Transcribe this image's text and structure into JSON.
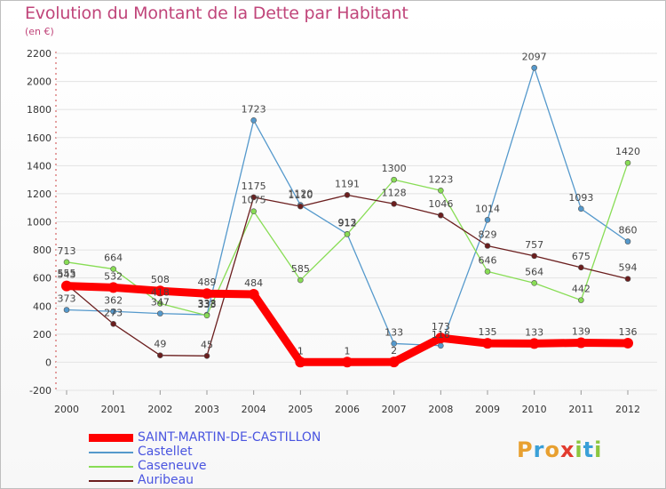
{
  "chart": {
    "title": "Evolution du Montant de la Dette par Habitant",
    "subtitle": "(en €)"
  },
  "logo": {
    "text": "Proxiti",
    "letters": [
      {
        "ch": "P",
        "color": "#e8a030"
      },
      {
        "ch": "r",
        "color": "#3aa0d8"
      },
      {
        "ch": "o",
        "color": "#e8a030"
      },
      {
        "ch": "x",
        "color": "#e23b2f"
      },
      {
        "ch": "i",
        "color": "#8cc63f"
      },
      {
        "ch": "t",
        "color": "#3aa0d8"
      },
      {
        "ch": "i",
        "color": "#8cc63f"
      }
    ]
  },
  "chart_data": {
    "type": "line",
    "title": "Evolution du Montant de la Dette par Habitant",
    "subtitle": "(en €)",
    "x": [
      "2000",
      "2001",
      "2002",
      "2003",
      "2004",
      "2005",
      "2006",
      "2007",
      "2008",
      "2009",
      "2010",
      "2011",
      "2012"
    ],
    "ylim": [
      -200,
      2200
    ],
    "yticks": [
      -200,
      0,
      200,
      400,
      600,
      800,
      1000,
      1200,
      1400,
      1600,
      1800,
      2000,
      2200
    ],
    "grid": "horizontal",
    "legend_position": "bottom-left",
    "series": [
      {
        "name": "SAINT-MARTIN-DE-CASTILLON",
        "color": "#ff0000",
        "values": [
          543,
          532,
          508,
          489,
          484,
          1,
          1,
          2,
          173,
          135,
          133,
          139,
          136
        ]
      },
      {
        "name": "Castellet",
        "color": "#5599cc",
        "values": [
          373,
          362,
          347,
          338,
          1723,
          1120,
          913,
          133,
          118,
          1014,
          2097,
          1093,
          860
        ]
      },
      {
        "name": "Caseneuve",
        "color": "#88dd55",
        "values": [
          713,
          664,
          418,
          333,
          1075,
          585,
          912,
          1300,
          1223,
          646,
          564,
          442,
          1420
        ]
      },
      {
        "name": "Auribeau",
        "color": "#6b1e1e",
        "values": [
          555,
          273,
          49,
          45,
          1175,
          1110,
          1191,
          1128,
          1046,
          829,
          757,
          675,
          594
        ]
      }
    ]
  }
}
